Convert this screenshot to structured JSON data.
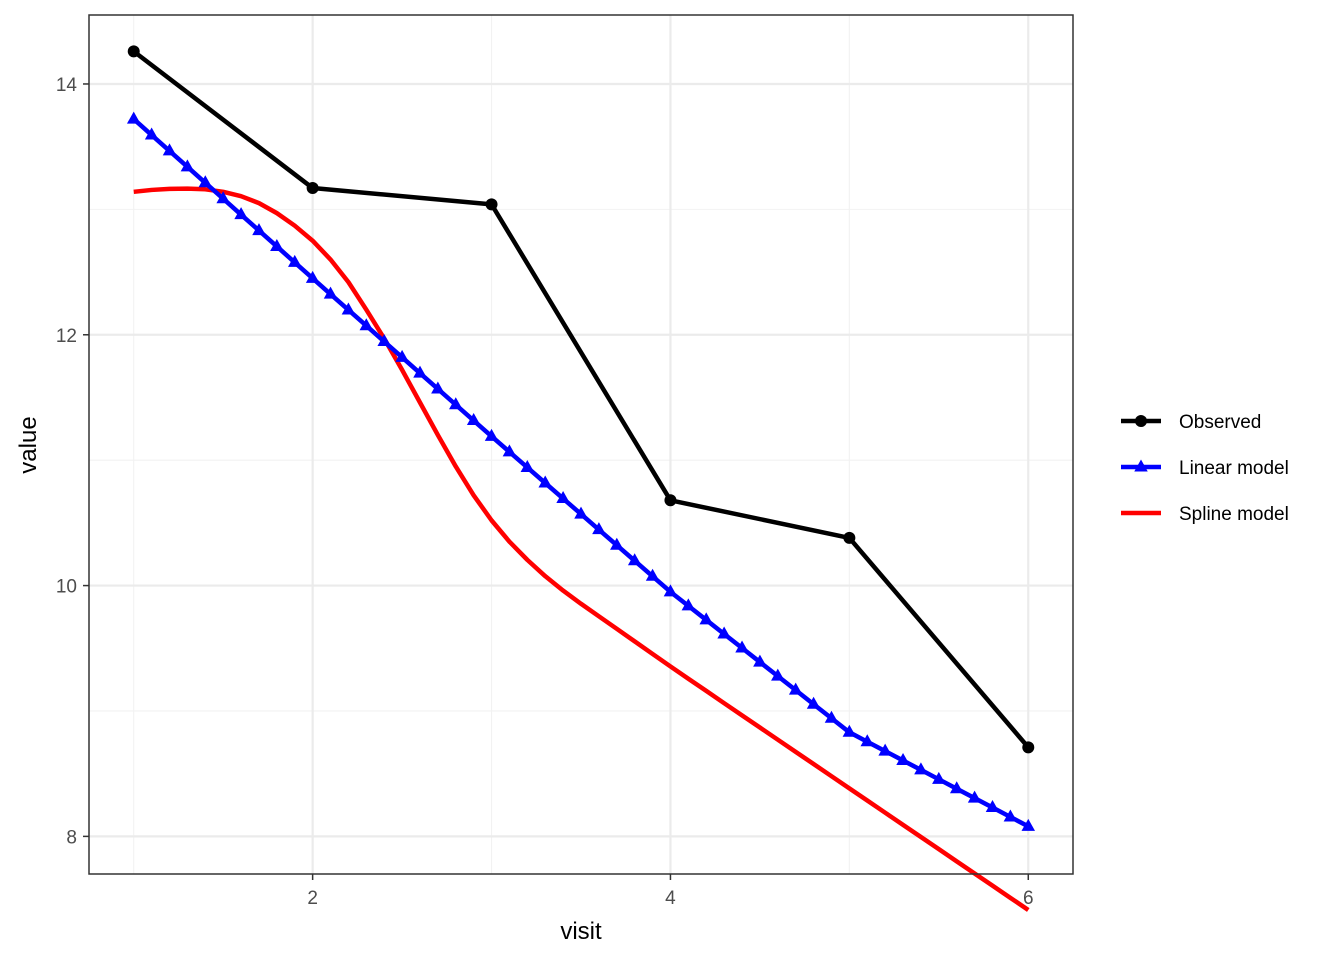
{
  "chart_data": {
    "type": "line",
    "title": "",
    "xlabel": "visit",
    "ylabel": "value",
    "xlim": [
      0.75,
      6.25
    ],
    "ylim": [
      7.7,
      14.55
    ],
    "x_ticks": [
      2,
      4,
      6
    ],
    "x_tick_labels": [
      "2",
      "4",
      "6"
    ],
    "x_minor_ticks": [
      1,
      3,
      5
    ],
    "y_ticks": [
      8,
      10,
      12,
      14
    ],
    "y_tick_labels": [
      "8",
      "10",
      "12",
      "14"
    ],
    "y_minor_ticks": [
      9,
      11,
      13
    ],
    "grid": true,
    "legend_position": "right",
    "series": [
      {
        "name": "Observed",
        "color": "#000000",
        "marker": "circle",
        "x": [
          1,
          2,
          3,
          4,
          5,
          6
        ],
        "y": [
          14.26,
          13.17,
          13.04,
          10.68,
          10.38,
          8.71
        ]
      },
      {
        "name": "Linear model",
        "color": "#0000ff",
        "marker": "triangle",
        "x": [
          1.0,
          1.1,
          1.2,
          1.3,
          1.4,
          1.5,
          1.6,
          1.7,
          1.8,
          1.9,
          2.0,
          2.1,
          2.2,
          2.3,
          2.4,
          2.5,
          2.6,
          2.7,
          2.8,
          2.9,
          3.0,
          3.1,
          3.2,
          3.3,
          3.4,
          3.5,
          3.6,
          3.7,
          3.8,
          3.9,
          4.0,
          4.1,
          4.2,
          4.3,
          4.4,
          4.5,
          4.6,
          4.7,
          4.8,
          4.9,
          5.0,
          5.1,
          5.2,
          5.3,
          5.4,
          5.5,
          5.6,
          5.7,
          5.8,
          5.9,
          6.0
        ],
        "y": [
          13.72,
          13.593,
          13.466,
          13.339,
          13.212,
          13.085,
          12.958,
          12.831,
          12.704,
          12.577,
          12.45,
          12.324,
          12.198,
          12.072,
          11.946,
          11.82,
          11.694,
          11.568,
          11.442,
          11.316,
          11.19,
          11.066,
          10.942,
          10.818,
          10.694,
          10.57,
          10.446,
          10.322,
          10.198,
          10.074,
          9.95,
          9.838,
          9.726,
          9.614,
          9.502,
          9.39,
          9.278,
          9.166,
          9.054,
          8.942,
          8.83,
          8.755,
          8.68,
          8.605,
          8.53,
          8.455,
          8.38,
          8.305,
          8.23,
          8.155,
          8.08
        ]
      },
      {
        "name": "Spline model",
        "color": "#ff0000",
        "marker": "none",
        "x": [
          1.0,
          1.1,
          1.2,
          1.3,
          1.4,
          1.5,
          1.6,
          1.7,
          1.8,
          1.9,
          2.0,
          2.1,
          2.2,
          2.3,
          2.4,
          2.5,
          2.6,
          2.7,
          2.8,
          2.9,
          3.0,
          3.1,
          3.2,
          3.3,
          3.4,
          3.5,
          3.6,
          3.7,
          3.8,
          3.9,
          4.0,
          4.1,
          4.2,
          4.3,
          4.4,
          4.5,
          4.6,
          4.7,
          4.8,
          4.9,
          5.0,
          5.1,
          5.2,
          5.3,
          5.4,
          5.5,
          5.6,
          5.7,
          5.8,
          5.9,
          6.0
        ],
        "y": [
          13.14,
          13.155,
          13.163,
          13.165,
          13.16,
          13.14,
          13.105,
          13.05,
          12.97,
          12.87,
          12.75,
          12.6,
          12.42,
          12.2,
          11.97,
          11.72,
          11.46,
          11.2,
          10.95,
          10.72,
          10.52,
          10.35,
          10.205,
          10.075,
          9.96,
          9.855,
          9.755,
          9.655,
          9.555,
          9.455,
          9.355,
          9.257,
          9.16,
          9.062,
          8.965,
          8.868,
          8.771,
          8.674,
          8.577,
          8.48,
          8.383,
          8.286,
          8.189,
          8.092,
          7.995,
          7.898,
          7.801,
          7.704,
          7.607,
          7.51,
          7.413
        ]
      }
    ]
  }
}
